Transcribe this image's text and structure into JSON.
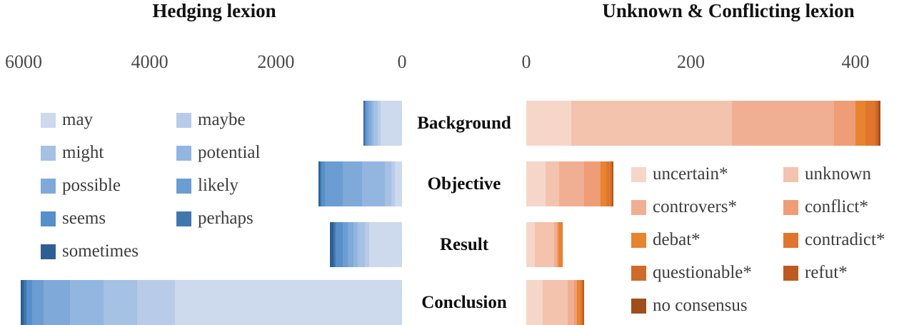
{
  "chart_data": [
    {
      "type": "bar",
      "orientation": "horizontal-stacked",
      "title": "Hedging lexion",
      "categories": [
        "Background",
        "Objective",
        "Result",
        "Conclusion"
      ],
      "axis": {
        "tick_labels": [
          "6000",
          "4000",
          "2000",
          "0"
        ],
        "tick_values": [
          6000,
          4000,
          2000,
          0
        ],
        "range": [
          0,
          6200
        ],
        "reversed": true,
        "grid": false
      },
      "legend_position": "overlay-left-two-columns",
      "series": [
        {
          "name": "may",
          "color": "#cdd9ed",
          "values": [
            340,
            115,
            520,
            3600
          ]
        },
        {
          "name": "maybe",
          "color": "#b8cbe8",
          "values": [
            50,
            60,
            70,
            600
          ]
        },
        {
          "name": "might",
          "color": "#a5c1e4",
          "values": [
            60,
            100,
            110,
            530
          ]
        },
        {
          "name": "potential",
          "color": "#92b6df",
          "values": [
            40,
            360,
            70,
            530
          ]
        },
        {
          "name": "possible",
          "color": "#7fa9d8",
          "values": [
            40,
            300,
            90,
            420
          ]
        },
        {
          "name": "likely",
          "color": "#6b9dd2",
          "values": [
            35,
            290,
            80,
            180
          ]
        },
        {
          "name": "seems",
          "color": "#568fc9",
          "values": [
            20,
            50,
            110,
            90
          ]
        },
        {
          "name": "perhaps",
          "color": "#4078ae",
          "values": [
            10,
            25,
            40,
            50
          ]
        },
        {
          "name": "sometimes",
          "color": "#2f5f92",
          "values": [
            15,
            20,
            50,
            50
          ]
        }
      ]
    },
    {
      "type": "bar",
      "orientation": "horizontal-stacked",
      "title": "Unknown & Conflicting lexion",
      "categories": [
        "Background",
        "Objective",
        "Result",
        "Conclusion"
      ],
      "axis": {
        "tick_labels": [
          "0",
          "200",
          "400"
        ],
        "tick_values": [
          0,
          200,
          400
        ],
        "range": [
          0,
          465
        ],
        "reversed": false,
        "grid": false
      },
      "legend_position": "overlay-right-two-columns",
      "series": [
        {
          "name": "uncertain*",
          "color": "#f6d6c9",
          "values": [
            55,
            23,
            10,
            20
          ]
        },
        {
          "name": "unknown",
          "color": "#f3c3ad",
          "values": [
            195,
            17,
            24,
            30
          ]
        },
        {
          "name": "controvers*",
          "color": "#f0af92",
          "values": [
            124,
            30,
            3,
            8
          ]
        },
        {
          "name": "conflict*",
          "color": "#ee9d76",
          "values": [
            26,
            20,
            2,
            4
          ]
        },
        {
          "name": "debat*",
          "color": "#e8832f",
          "values": [
            12,
            7,
            4,
            4
          ]
        },
        {
          "name": "contradict*",
          "color": "#e0762d",
          "values": [
            12,
            5,
            1,
            2
          ]
        },
        {
          "name": "questionable*",
          "color": "#d06a28",
          "values": [
            3,
            2,
            0,
            1
          ]
        },
        {
          "name": "refut*",
          "color": "#bc5b20",
          "values": [
            2,
            1,
            0,
            1
          ]
        },
        {
          "name": "no consensus",
          "color": "#a04e1c",
          "values": [
            1,
            1,
            0,
            0
          ]
        }
      ]
    }
  ],
  "colors": {
    "background": "#ffffff",
    "title_text": "#111111",
    "axis_text": "#4a4a4a",
    "legend_text": "#3d3d3d"
  }
}
